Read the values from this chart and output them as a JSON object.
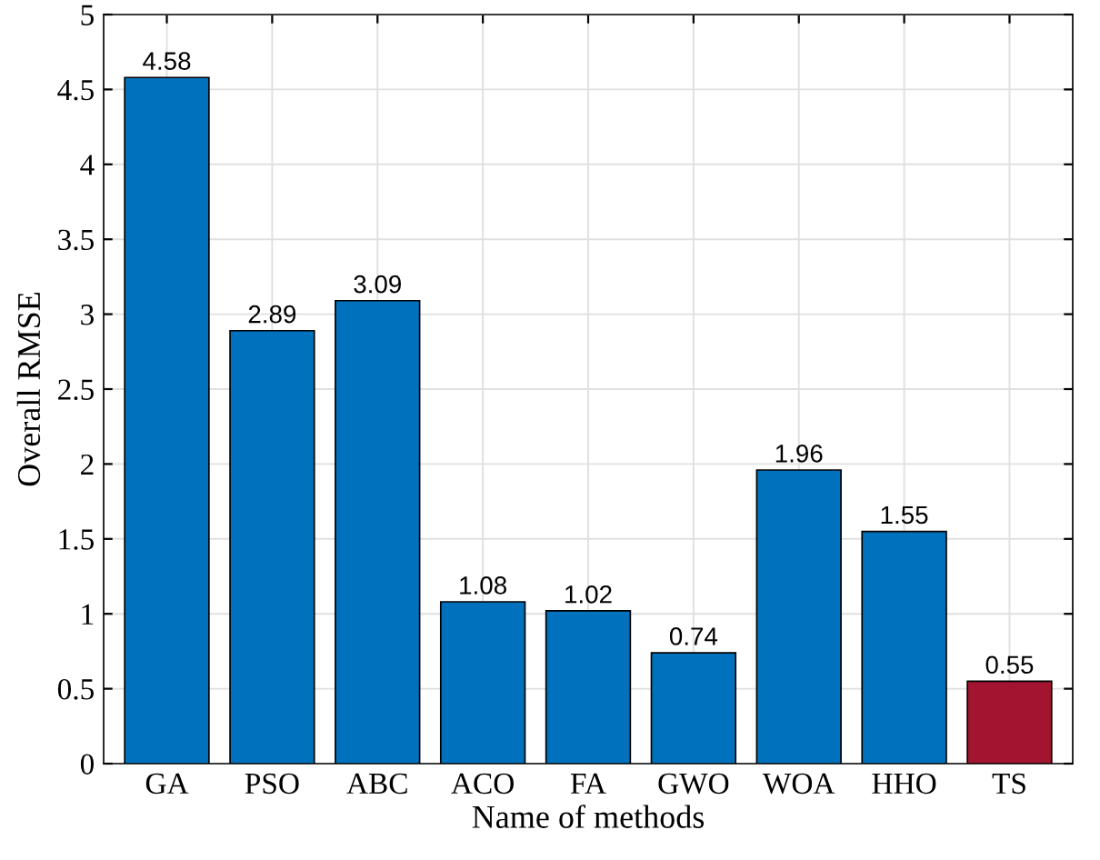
{
  "chart_data": {
    "type": "bar",
    "xlabel": "Name of methods",
    "ylabel": "Overall RMSE",
    "categories": [
      "GA",
      "PSO",
      "ABC",
      "ACO",
      "FA",
      "GWO",
      "WOA",
      "HHO",
      "TS"
    ],
    "values": [
      4.58,
      2.89,
      3.09,
      1.08,
      1.02,
      0.74,
      1.96,
      1.55,
      0.55
    ],
    "colors": [
      "#0072bd",
      "#0072bd",
      "#0072bd",
      "#0072bd",
      "#0072bd",
      "#0072bd",
      "#0072bd",
      "#0072bd",
      "#a2142f"
    ],
    "ylim": [
      0,
      5
    ],
    "yticks": [
      0,
      0.5,
      1,
      1.5,
      2,
      2.5,
      3,
      3.5,
      4,
      4.5,
      5
    ],
    "grid": true,
    "data_labels": true
  }
}
